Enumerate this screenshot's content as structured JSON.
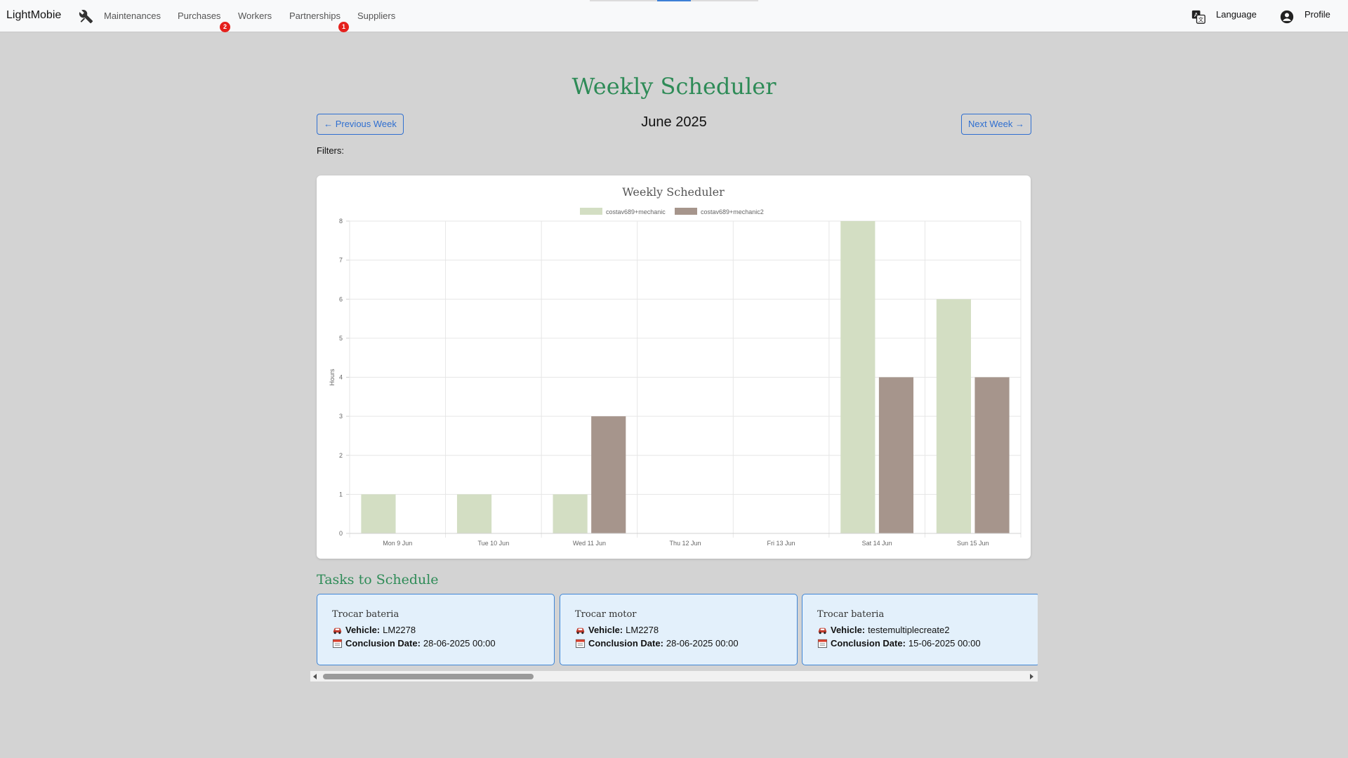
{
  "navbar": {
    "brand": "LightMobie",
    "links": [
      {
        "label": "Maintenances",
        "badge": null
      },
      {
        "label": "Purchases",
        "badge": "2"
      },
      {
        "label": "Workers",
        "badge": null
      },
      {
        "label": "Partnerships",
        "badge": "1"
      },
      {
        "label": "Suppliers",
        "badge": null
      }
    ],
    "language_label": "Language",
    "profile_label": "Profile"
  },
  "page": {
    "title": "Weekly Scheduler",
    "prev_week": "← Previous Week",
    "next_week": "Next Week →",
    "month": "June 2025",
    "filters_label": "Filters:"
  },
  "chart_data": {
    "type": "bar",
    "title": "Weekly Scheduler",
    "categories": [
      "Mon 9 Jun",
      "Tue 10 Jun",
      "Wed 11 Jun",
      "Thu 12 Jun",
      "Fri 13 Jun",
      "Sat 14 Jun",
      "Sun 15 Jun"
    ],
    "series": [
      {
        "name": "costav689+mechanic",
        "color": "#d3dec3",
        "values": [
          1,
          1,
          1,
          0,
          0,
          8,
          6
        ]
      },
      {
        "name": "costav689+mechanic2",
        "color": "#a6958c",
        "values": [
          0,
          0,
          3,
          0,
          0,
          4,
          4
        ]
      }
    ],
    "xlabel": "",
    "ylabel": "Hours",
    "ylim": [
      0,
      8
    ],
    "yticks": [
      0,
      1,
      2,
      3,
      4,
      5,
      6,
      7,
      8
    ],
    "grid": true,
    "legend_position": "top-center"
  },
  "tasks": {
    "title": "Tasks to Schedule",
    "vehicle_label": "Vehicle:",
    "date_label": "Conclusion Date:",
    "items": [
      {
        "title": "Trocar bateria",
        "vehicle": "LM2278",
        "date": "28-06-2025 00:00"
      },
      {
        "title": "Trocar motor",
        "vehicle": "LM2278",
        "date": "28-06-2025 00:00"
      },
      {
        "title": "Trocar bateria",
        "vehicle": "testemultiplecreate2",
        "date": "15-06-2025 00:00"
      }
    ]
  },
  "colors": {
    "accent_green": "#2e8b57",
    "button_blue": "#2f6fd0",
    "badge_red": "#e5201c",
    "card_bg": "#e3f0fb"
  }
}
